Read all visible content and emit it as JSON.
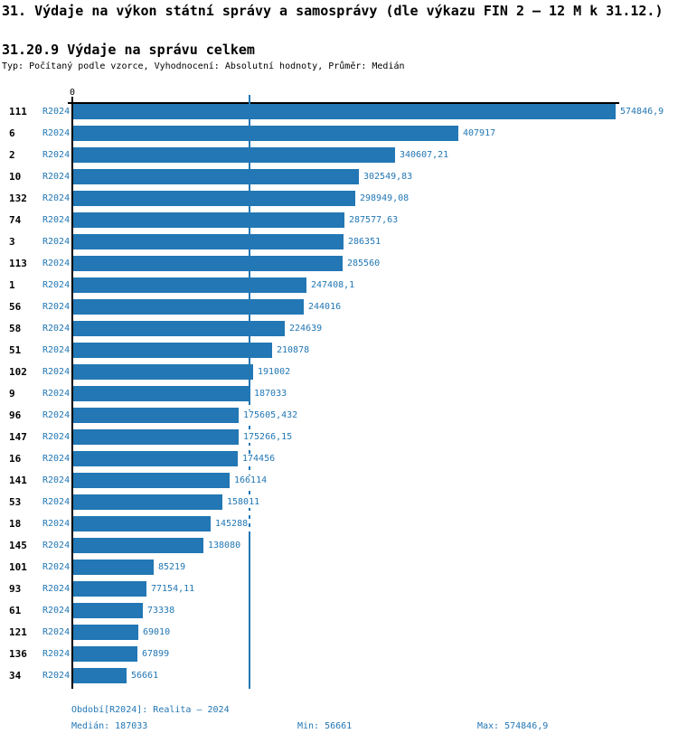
{
  "header": {
    "title": "31. Výdaje na výkon státní správy a samosprávy (dle výkazu FIN 2 – 12 M k 31.12.)",
    "subtitle": "31.20.9 Výdaje na správu celkem",
    "meta": "Typ: Počítaný podle vzorce, Vyhodnocení: Absolutní hodnoty, Průměr: Medián"
  },
  "chart_data": {
    "type": "bar",
    "orientation": "horizontal",
    "title": "31.20.9 Výdaje na správu celkem",
    "xlabel": "",
    "ylabel": "",
    "axis": {
      "zero_tick_label": "0",
      "xmin": 0,
      "xmax": 574846.9,
      "grid": false
    },
    "series_label": "R2024",
    "median_line": {
      "value": 187033,
      "color": "#2277b4"
    },
    "bar_color": "#2277b4",
    "categories": [
      "111",
      "6",
      "2",
      "10",
      "132",
      "74",
      "3",
      "113",
      "1",
      "56",
      "58",
      "51",
      "102",
      "9",
      "96",
      "147",
      "16",
      "141",
      "53",
      "18",
      "145",
      "101",
      "93",
      "61",
      "121",
      "136",
      "34"
    ],
    "values": [
      574846.9,
      407917,
      340607.21,
      302549.83,
      298949.08,
      287577.63,
      286351,
      285560,
      247408.1,
      244016,
      224639,
      210878,
      191002,
      187033,
      175605.432,
      175266.15,
      174456,
      166114,
      158011,
      145288,
      138080,
      85219,
      77154.11,
      73338,
      69010,
      67899,
      56661
    ],
    "value_labels": [
      "574846,9",
      "407917",
      "340607,21",
      "302549,83",
      "298949,08",
      "287577,63",
      "286351",
      "285560",
      "247408,1",
      "244016",
      "224639",
      "210878",
      "191002",
      "187033",
      "175605,432",
      "175266,15",
      "174456",
      "166114",
      "158011",
      "145288",
      "138080",
      "85219",
      "77154,11",
      "73338",
      "69010",
      "67899",
      "56661"
    ]
  },
  "footer": {
    "period": "Období[R2024]: Realita – 2024",
    "median": "Medián: 187033",
    "min": "Min: 56661",
    "max": "Max: 574846,9"
  },
  "colors": {
    "accent_blue": "#2277b4",
    "axis_black": "#000000"
  }
}
